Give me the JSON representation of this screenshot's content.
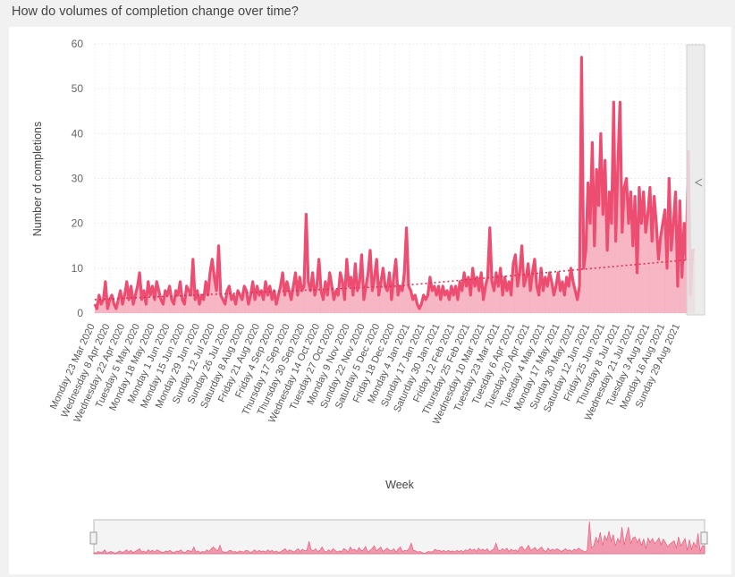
{
  "question": "How do volumes of completion change over time?",
  "chart_data": {
    "type": "area",
    "xlabel": "Week",
    "ylabel": "Number of completions",
    "ylim": [
      0,
      60
    ],
    "yticks": [
      0,
      10,
      20,
      30,
      40,
      50,
      60
    ],
    "grid": true,
    "x_tick_labels": [
      "Monday 23 Mar 2020",
      "Wednesday 8 Apr 2020",
      "Wednesday 22 Apr 2020",
      "Tuesday 5 May 2020",
      "Monday 18 May 2020",
      "Monday 1 Jun 2020",
      "Monday 15 Jun 2020",
      "Monday 29 Jun 2020",
      "Sunday 12 Jul 2020",
      "Sunday 26 Jul 2020",
      "Saturday 8 Aug 2020",
      "Friday 21 Aug 2020",
      "Friday 4 Sep 2020",
      "Thursday 17 Sep 2020",
      "Thursday 30 Sep 2020",
      "Wednesday 14 Oct 2020",
      "Tuesday 27 Oct 2020",
      "Monday 9 Nov 2020",
      "Sunday 22 Nov 2020",
      "Saturday 5 Dec 2020",
      "Friday 18 Dec 2020",
      "Monday 4 Jan 2021",
      "Sunday 17 Jan 2021",
      "Saturday 30 Jan 2021",
      "Friday 12 Feb 2021",
      "Thursday 25 Feb 2021",
      "Wednesday 10 Mar 2021",
      "Tuesday 23 Mar 2021",
      "Tuesday 6 Apr 2021",
      "Tuesday 20 Apr 2021",
      "Tuesday 4 May 2021",
      "Monday 17 May 2021",
      "Sunday 30 May 2021",
      "Saturday 12 Jun 2021",
      "Friday 25 Jun 2021",
      "Thursday 8 Jul 2021",
      "Wednesday 21 Jul 2021",
      "Tuesday 3 Aug 2021",
      "Monday 16 Aug 2021",
      "Sunday 29 Aug 2021"
    ],
    "series": [
      {
        "values": [
          2,
          1,
          4,
          2,
          3,
          7,
          1,
          3,
          4,
          2,
          1,
          3,
          5,
          2,
          4,
          7,
          3,
          6,
          2,
          4,
          6,
          9,
          3,
          5,
          2,
          7,
          4,
          6,
          3,
          7,
          5,
          3,
          2,
          5,
          4,
          6,
          3,
          2,
          5,
          4,
          7,
          3,
          2,
          6,
          5,
          4,
          12,
          3,
          5,
          2,
          4,
          3,
          7,
          4,
          9,
          12,
          8,
          5,
          15,
          4,
          3,
          2,
          5,
          6,
          3,
          4,
          2,
          5,
          4,
          3,
          6,
          5,
          2,
          4,
          7,
          3,
          6,
          4,
          5,
          3,
          7,
          4,
          6,
          3,
          5,
          2,
          4,
          6,
          9,
          4,
          7,
          5,
          3,
          6,
          9,
          4,
          8,
          5,
          6,
          22,
          7,
          5,
          9,
          4,
          6,
          12,
          5,
          3,
          7,
          4,
          9,
          6,
          3,
          5,
          4,
          9,
          7,
          3,
          12,
          6,
          8,
          4,
          11,
          5,
          7,
          13,
          3,
          6,
          9,
          14,
          5,
          8,
          12,
          4,
          7,
          10,
          6,
          5,
          9,
          3,
          8,
          12,
          4,
          6,
          5,
          9,
          19,
          6,
          5,
          3,
          4,
          2,
          1,
          2,
          4,
          3,
          4,
          8,
          5,
          6,
          4,
          6,
          3,
          6,
          4,
          5,
          3,
          6,
          4,
          6,
          3,
          7,
          5,
          9,
          6,
          8,
          4,
          10,
          6,
          8,
          5,
          9,
          3,
          6,
          8,
          19,
          7,
          5,
          9,
          6,
          10,
          4,
          8,
          5,
          7,
          4,
          11,
          13,
          6,
          9,
          15,
          6,
          8,
          11,
          5,
          9,
          12,
          6,
          4,
          10,
          5,
          8,
          6,
          9,
          7,
          4,
          6,
          9,
          5,
          7,
          4,
          8,
          6,
          10,
          7,
          5,
          3,
          6,
          57,
          10,
          14,
          29,
          20,
          38,
          15,
          32,
          24,
          40,
          22,
          34,
          14,
          27,
          20,
          47,
          16,
          33,
          47,
          18,
          28,
          30,
          20,
          27,
          15,
          26,
          9,
          28,
          20,
          27,
          18,
          22,
          28,
          16,
          26,
          20,
          12,
          17,
          20,
          23,
          10,
          30,
          14,
          20,
          27,
          6,
          25,
          8,
          20,
          12,
          36,
          4,
          14,
          14
        ]
      }
    ],
    "trend_values": [
      3,
      4,
      5,
      6,
      8,
      10,
      12
    ],
    "navigator": {
      "range_start": 0,
      "range_end": 1
    }
  }
}
